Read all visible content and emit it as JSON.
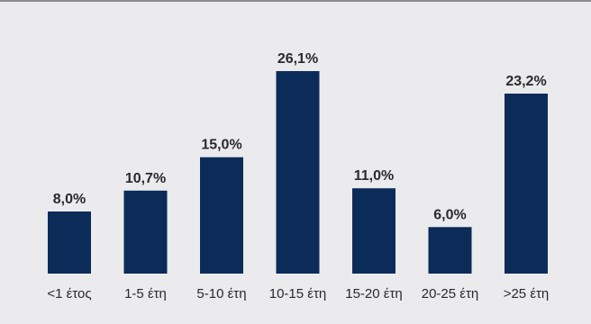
{
  "chart_data": {
    "type": "bar",
    "categories": [
      "<1 έτος",
      "1-5 έτη",
      "5-10 έτη",
      "10-15 έτη",
      "15-20 έτη",
      "20-25 έτη",
      ">25 έτη"
    ],
    "values": [
      8.0,
      10.7,
      15.0,
      26.1,
      11.0,
      6.0,
      23.2
    ],
    "value_labels": [
      "8,0%",
      "10,7%",
      "15,0%",
      "26,1%",
      "11,0%",
      "6,0%",
      "23,2%"
    ],
    "unit": "%",
    "ylim": [
      0,
      30
    ],
    "grid": false,
    "colors": {
      "bar": "#0b2b59",
      "background": "#ebebed",
      "text": "#2a2a2e"
    }
  }
}
